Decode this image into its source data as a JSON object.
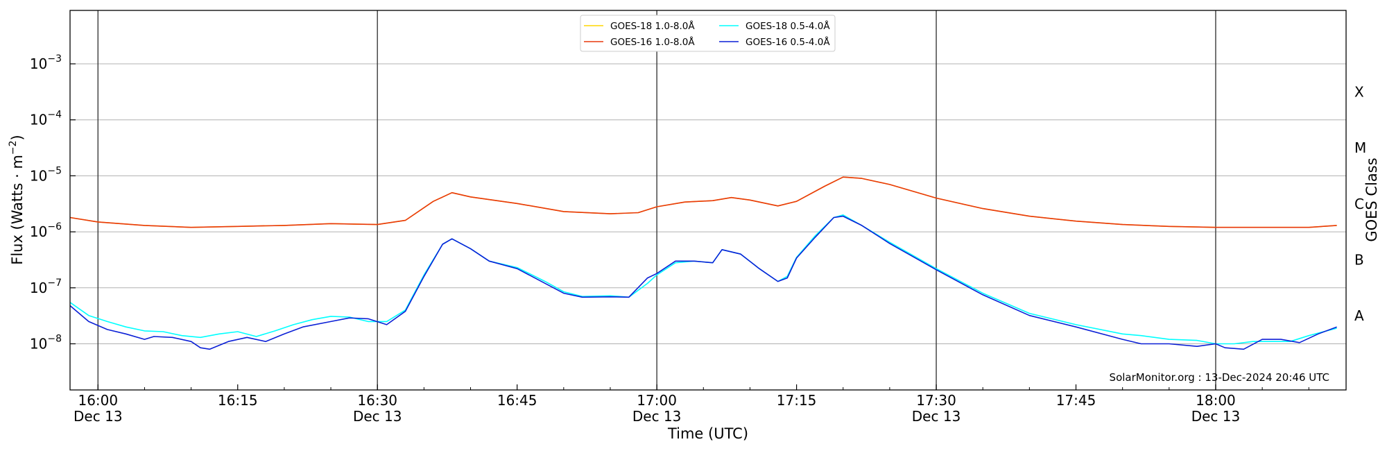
{
  "chart_data": {
    "type": "line",
    "xlabel": "Time (UTC)",
    "ylabel_main": "Flux (Watts · m",
    "ylabel_sup": "−2",
    "ylabel_close": ")",
    "y2label": "GOES Class",
    "yscale": "log",
    "ylim": [
      1.5e-09,
      0.009
    ],
    "xlim": [
      "15:57",
      "18:14"
    ],
    "grid": "horizontal at each decade",
    "x_ticks": [
      {
        "time": "16:00",
        "label": "16:00",
        "date": "Dec 13"
      },
      {
        "time": "16:15",
        "label": "16:15",
        "date": ""
      },
      {
        "time": "16:30",
        "label": "16:30",
        "date": "Dec 13"
      },
      {
        "time": "16:45",
        "label": "16:45",
        "date": ""
      },
      {
        "time": "17:00",
        "label": "17:00",
        "date": "Dec 13"
      },
      {
        "time": "17:15",
        "label": "17:15",
        "date": ""
      },
      {
        "time": "17:30",
        "label": "17:30",
        "date": "Dec 13"
      },
      {
        "time": "17:45",
        "label": "17:45",
        "date": ""
      },
      {
        "time": "18:00",
        "label": "18:00",
        "date": "Dec 13"
      }
    ],
    "vertical_lines": [
      "16:00",
      "16:30",
      "17:00",
      "17:30",
      "18:00"
    ],
    "y_ticks": [
      {
        "value": 1e-08,
        "base": "10",
        "exp": "−8"
      },
      {
        "value": 1e-07,
        "base": "10",
        "exp": "−7"
      },
      {
        "value": 1e-06,
        "base": "10",
        "exp": "−6"
      },
      {
        "value": 1e-05,
        "base": "10",
        "exp": "−5"
      },
      {
        "value": 0.0001,
        "base": "10",
        "exp": "−4"
      },
      {
        "value": 0.001,
        "base": "10",
        "exp": "−3"
      }
    ],
    "goes_classes": [
      {
        "label": "A",
        "value": 3.16e-08
      },
      {
        "label": "B",
        "value": 3.16e-07
      },
      {
        "label": "C",
        "value": 3.16e-06
      },
      {
        "label": "M",
        "value": 3.16e-05
      },
      {
        "label": "X",
        "value": 0.000316
      }
    ],
    "legend_position": "top-center",
    "credit": "SolarMonitor.org : 13-Dec-2024 20:46 UTC",
    "series": [
      {
        "name": "GOES-18 1.0-8.0Å",
        "color": "#ffd700",
        "x": [
          "15:57",
          "16:00",
          "16:05",
          "16:10",
          "16:15",
          "16:20",
          "16:25",
          "16:30",
          "16:33",
          "16:36",
          "16:38",
          "16:40",
          "16:45",
          "16:50",
          "16:55",
          "16:58",
          "17:00",
          "17:03",
          "17:06",
          "17:08",
          "17:10",
          "17:13",
          "17:15",
          "17:18",
          "17:20",
          "17:22",
          "17:25",
          "17:30",
          "17:35",
          "17:40",
          "17:45",
          "17:50",
          "17:55",
          "18:00",
          "18:05",
          "18:10",
          "18:13"
        ],
        "values": [
          1.8e-06,
          1.5e-06,
          1.3e-06,
          1.2e-06,
          1.25e-06,
          1.3e-06,
          1.4e-06,
          1.35e-06,
          1.6e-06,
          3.5e-06,
          5e-06,
          4.2e-06,
          3.2e-06,
          2.3e-06,
          2.1e-06,
          2.2e-06,
          2.8e-06,
          3.4e-06,
          3.6e-06,
          4.1e-06,
          3.7e-06,
          2.9e-06,
          3.5e-06,
          6.5e-06,
          9.5e-06,
          9e-06,
          7e-06,
          4e-06,
          2.6e-06,
          1.9e-06,
          1.55e-06,
          1.35e-06,
          1.25e-06,
          1.2e-06,
          1.2e-06,
          1.2e-06,
          1.3e-06
        ]
      },
      {
        "name": "GOES-16 1.0-8.0Å",
        "color": "#e8380d",
        "x": [
          "15:57",
          "16:00",
          "16:05",
          "16:10",
          "16:15",
          "16:20",
          "16:25",
          "16:30",
          "16:33",
          "16:36",
          "16:38",
          "16:40",
          "16:45",
          "16:50",
          "16:55",
          "16:58",
          "17:00",
          "17:03",
          "17:06",
          "17:08",
          "17:10",
          "17:13",
          "17:15",
          "17:18",
          "17:20",
          "17:22",
          "17:25",
          "17:30",
          "17:35",
          "17:40",
          "17:45",
          "17:50",
          "17:55",
          "18:00",
          "18:05",
          "18:10",
          "18:13"
        ],
        "values": [
          1.8e-06,
          1.5e-06,
          1.3e-06,
          1.2e-06,
          1.25e-06,
          1.3e-06,
          1.4e-06,
          1.35e-06,
          1.6e-06,
          3.5e-06,
          5e-06,
          4.2e-06,
          3.2e-06,
          2.3e-06,
          2.1e-06,
          2.2e-06,
          2.8e-06,
          3.4e-06,
          3.6e-06,
          4.1e-06,
          3.7e-06,
          2.9e-06,
          3.5e-06,
          6.5e-06,
          9.5e-06,
          9e-06,
          7e-06,
          4e-06,
          2.6e-06,
          1.9e-06,
          1.55e-06,
          1.35e-06,
          1.25e-06,
          1.2e-06,
          1.2e-06,
          1.2e-06,
          1.3e-06
        ]
      },
      {
        "name": "GOES-18 0.5-4.0Å",
        "color": "#00ffff",
        "x": [
          "15:57",
          "15:59",
          "16:01",
          "16:03",
          "16:05",
          "16:07",
          "16:09",
          "16:11",
          "16:13",
          "16:15",
          "16:17",
          "16:19",
          "16:21",
          "16:23",
          "16:25",
          "16:27",
          "16:29",
          "16:31",
          "16:33",
          "16:35",
          "16:37",
          "16:38",
          "16:40",
          "16:42",
          "16:45",
          "16:48",
          "16:50",
          "16:52",
          "16:55",
          "16:57",
          "16:59",
          "17:00",
          "17:02",
          "17:04",
          "17:06",
          "17:07",
          "17:09",
          "17:11",
          "17:13",
          "17:14",
          "17:15",
          "17:17",
          "17:19",
          "17:20",
          "17:22",
          "17:25",
          "17:30",
          "17:35",
          "17:40",
          "17:45",
          "17:50",
          "17:52",
          "17:55",
          "17:58",
          "18:00",
          "18:02",
          "18:04",
          "18:06",
          "18:08",
          "18:10",
          "18:13"
        ],
        "values": [
          5.5e-08,
          3.2e-08,
          2.5e-08,
          2e-08,
          1.7e-08,
          1.65e-08,
          1.4e-08,
          1.3e-08,
          1.5e-08,
          1.65e-08,
          1.35e-08,
          1.7e-08,
          2.2e-08,
          2.7e-08,
          3.1e-08,
          3e-08,
          2.5e-08,
          2.5e-08,
          4e-08,
          1.7e-07,
          6e-07,
          7.5e-07,
          5e-07,
          3e-07,
          2.3e-07,
          1.3e-07,
          8.5e-08,
          7e-08,
          7.2e-08,
          6.8e-08,
          1.2e-07,
          1.7e-07,
          2.8e-07,
          3e-07,
          2.8e-07,
          4.8e-07,
          4e-07,
          2.2e-07,
          1.3e-07,
          1.6e-07,
          3.5e-07,
          8.5e-07,
          1.8e-06,
          2e-06,
          1.3e-06,
          6.5e-07,
          2.2e-07,
          8e-08,
          3.5e-08,
          2.2e-08,
          1.5e-08,
          1.4e-08,
          1.2e-08,
          1.15e-08,
          1e-08,
          1e-08,
          1.1e-08,
          1.1e-08,
          1.1e-08,
          1.4e-08,
          1.9e-08
        ]
      },
      {
        "name": "GOES-16 0.5-4.0Å",
        "color": "#0a1fd6",
        "x": [
          "15:57",
          "15:59",
          "16:01",
          "16:03",
          "16:05",
          "16:06",
          "16:08",
          "16:10",
          "16:11",
          "16:12",
          "16:14",
          "16:16",
          "16:18",
          "16:20",
          "16:22",
          "16:25",
          "16:27",
          "16:29",
          "16:31",
          "16:33",
          "16:35",
          "16:37",
          "16:38",
          "16:40",
          "16:42",
          "16:45",
          "16:48",
          "16:50",
          "16:52",
          "16:55",
          "16:57",
          "16:59",
          "17:00",
          "17:02",
          "17:04",
          "17:06",
          "17:07",
          "17:09",
          "17:11",
          "17:13",
          "17:14",
          "17:15",
          "17:17",
          "17:19",
          "17:20",
          "17:22",
          "17:25",
          "17:30",
          "17:35",
          "17:40",
          "17:45",
          "17:50",
          "17:52",
          "17:55",
          "17:58",
          "18:00",
          "18:01",
          "18:03",
          "18:05",
          "18:07",
          "18:09",
          "18:11",
          "18:13"
        ],
        "values": [
          4.8e-08,
          2.5e-08,
          1.8e-08,
          1.5e-08,
          1.2e-08,
          1.35e-08,
          1.3e-08,
          1.1e-08,
          8.5e-09,
          8e-09,
          1.1e-08,
          1.3e-08,
          1.1e-08,
          1.5e-08,
          2e-08,
          2.5e-08,
          2.9e-08,
          2.8e-08,
          2.2e-08,
          3.8e-08,
          1.6e-07,
          6e-07,
          7.5e-07,
          5e-07,
          3e-07,
          2.2e-07,
          1.2e-07,
          8e-08,
          6.8e-08,
          6.9e-08,
          6.8e-08,
          1.5e-07,
          1.8e-07,
          3e-07,
          3e-07,
          2.8e-07,
          4.8e-07,
          4e-07,
          2.2e-07,
          1.3e-07,
          1.5e-07,
          3.4e-07,
          8e-07,
          1.8e-06,
          1.9e-06,
          1.3e-06,
          6.2e-07,
          2.1e-07,
          7.5e-08,
          3.2e-08,
          2e-08,
          1.2e-08,
          1e-08,
          1e-08,
          9e-09,
          1e-08,
          8.5e-09,
          8e-09,
          1.2e-08,
          1.2e-08,
          1.05e-08,
          1.5e-08,
          2e-08
        ]
      }
    ]
  }
}
